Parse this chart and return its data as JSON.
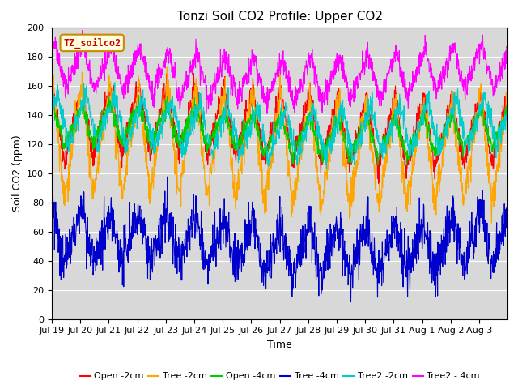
{
  "title": "Tonzi Soil CO2 Profile: Upper CO2",
  "xlabel": "Time",
  "ylabel": "Soil CO2 (ppm)",
  "ylim": [
    0,
    200
  ],
  "bg_color": "#d8d8d8",
  "legend_label": "TZ_soilco2",
  "series": [
    {
      "label": "Open -2cm",
      "color": "#ff0000"
    },
    {
      "label": "Tree -2cm",
      "color": "#ffa500"
    },
    {
      "label": "Open -4cm",
      "color": "#00cc00"
    },
    {
      "label": "Tree -4cm",
      "color": "#0000cc"
    },
    {
      "label": "Tree2 -2cm",
      "color": "#00cccc"
    },
    {
      "label": "Tree2 - 4cm",
      "color": "#ff00ff"
    }
  ],
  "series_params": [
    {
      "mean": 132,
      "amp_hi": 25,
      "amp_lo": 22,
      "noise": 4,
      "phase": 0.55
    },
    {
      "mean": 118,
      "amp_hi": 38,
      "amp_lo": 35,
      "noise": 6,
      "phase": 0.55
    },
    {
      "mean": 129,
      "amp_hi": 14,
      "amp_lo": 12,
      "noise": 3,
      "phase": 0.55
    },
    {
      "mean": 52,
      "amp_hi": 18,
      "amp_lo": 16,
      "noise": 8,
      "phase": 0.55
    },
    {
      "mean": 132,
      "amp_hi": 18,
      "amp_lo": 16,
      "noise": 4,
      "phase": 0.4
    },
    {
      "mean": 168,
      "amp_hi": 16,
      "amp_lo": 14,
      "noise": 4,
      "phase": 0.5
    }
  ],
  "xtick_labels": [
    "Jul 19",
    "Jul 20",
    "Jul 21",
    "Jul 22",
    "Jul 23",
    "Jul 24",
    "Jul 25",
    "Jul 26",
    "Jul 27",
    "Jul 28",
    "Jul 29",
    "Jul 30",
    "Jul 31",
    "Aug 1",
    "Aug 2",
    "Aug 3"
  ],
  "grid_color": "#ffffff",
  "title_fontsize": 11,
  "axis_fontsize": 9,
  "tick_fontsize": 8,
  "legend_fontsize": 8
}
